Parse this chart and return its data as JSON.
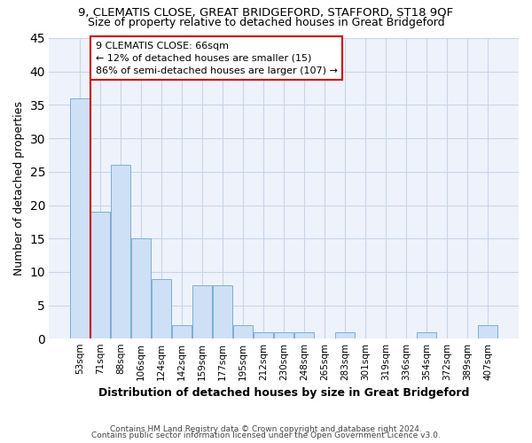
{
  "title1": "9, CLEMATIS CLOSE, GREAT BRIDGEFORD, STAFFORD, ST18 9QF",
  "title2": "Size of property relative to detached houses in Great Bridgeford",
  "xlabel": "Distribution of detached houses by size in Great Bridgeford",
  "ylabel": "Number of detached properties",
  "categories": [
    "53sqm",
    "71sqm",
    "88sqm",
    "106sqm",
    "124sqm",
    "142sqm",
    "159sqm",
    "177sqm",
    "195sqm",
    "212sqm",
    "230sqm",
    "248sqm",
    "265sqm",
    "283sqm",
    "301sqm",
    "319sqm",
    "336sqm",
    "354sqm",
    "372sqm",
    "389sqm",
    "407sqm"
  ],
  "values": [
    36,
    19,
    26,
    15,
    9,
    2,
    8,
    8,
    2,
    1,
    1,
    1,
    0,
    1,
    0,
    0,
    0,
    1,
    0,
    0,
    2
  ],
  "bar_color": "#cde0f5",
  "bar_edge_color": "#7aafd4",
  "annotation_text": "9 CLEMATIS CLOSE: 66sqm\n← 12% of detached houses are smaller (15)\n86% of semi-detached houses are larger (107) →",
  "annotation_box_color": "#ffffff",
  "annotation_box_edge_color": "#cc0000",
  "ylim": [
    0,
    45
  ],
  "yticks": [
    0,
    5,
    10,
    15,
    20,
    25,
    30,
    35,
    40,
    45
  ],
  "footer1": "Contains HM Land Registry data © Crown copyright and database right 2024.",
  "footer2": "Contains public sector information licensed under the Open Government Licence v3.0.",
  "bg_color": "#eef2fb",
  "grid_color": "#c8d4e8",
  "title_fontsize": 9.5,
  "subtitle_fontsize": 9,
  "axis_label_fontsize": 9,
  "tick_fontsize": 7.5,
  "annotation_fontsize": 8,
  "footer_fontsize": 6.5
}
